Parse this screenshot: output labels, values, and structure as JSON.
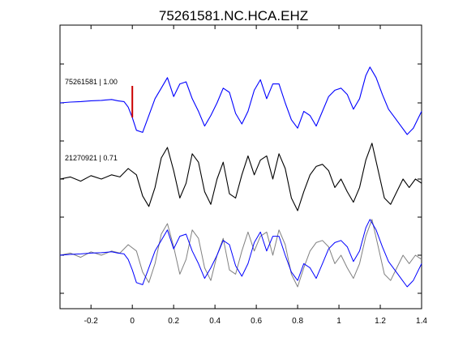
{
  "chart_data": {
    "type": "line",
    "title": "75261581.NC.HCA.EHZ",
    "xlabel": "",
    "ylabel": "",
    "xlim": [
      -0.35,
      1.4
    ],
    "x_ticks": [
      -0.2,
      0,
      0.2,
      0.4,
      0.6,
      0.8,
      1,
      1.2,
      1.4
    ],
    "x_tick_labels": [
      "-0.2",
      "0",
      "0.2",
      "0.4",
      "0.6",
      "0.8",
      "1",
      "1.2",
      "1.4"
    ],
    "grid": false,
    "pick_marker": {
      "x": 0,
      "color": "#cc0000"
    },
    "colors": {
      "primary": "#0000ff",
      "secondary": "#000000",
      "overlay_gray": "#808080"
    },
    "traces": [
      {
        "label": "75261581 | 1.00",
        "color": "#0000ff",
        "x": [
          -0.35,
          -0.3,
          -0.25,
          -0.2,
          -0.15,
          -0.1,
          -0.07,
          -0.04,
          -0.02,
          0,
          0.02,
          0.05,
          0.08,
          0.11,
          0.14,
          0.17,
          0.2,
          0.23,
          0.26,
          0.29,
          0.32,
          0.35,
          0.38,
          0.41,
          0.44,
          0.47,
          0.5,
          0.53,
          0.56,
          0.59,
          0.62,
          0.65,
          0.68,
          0.71,
          0.74,
          0.77,
          0.8,
          0.83,
          0.86,
          0.89,
          0.92,
          0.95,
          0.98,
          1.01,
          1.04,
          1.07,
          1.1,
          1.13,
          1.15,
          1.18,
          1.21,
          1.24,
          1.27,
          1.3,
          1.33,
          1.36,
          1.4
        ],
        "y": [
          0,
          0.02,
          0.03,
          0.05,
          0.06,
          0.08,
          0.05,
          0.03,
          -0.1,
          -0.35,
          -0.65,
          -0.7,
          -0.3,
          0.1,
          0.35,
          0.6,
          0.15,
          0.45,
          0.5,
          0.1,
          -0.2,
          -0.55,
          -0.3,
          0.0,
          0.35,
          0.25,
          -0.25,
          -0.5,
          -0.2,
          0.3,
          0.55,
          0.1,
          0.45,
          0.45,
          0.0,
          -0.4,
          -0.6,
          -0.2,
          -0.3,
          -0.55,
          -0.2,
          0.15,
          0.3,
          0.35,
          0.2,
          -0.15,
          0.1,
          0.65,
          0.85,
          0.6,
          0.2,
          -0.15,
          -0.35,
          -0.55,
          -0.75,
          -0.6,
          -0.2
        ]
      },
      {
        "label": "21270921 | 0.71",
        "color": "#000000",
        "x": [
          -0.35,
          -0.3,
          -0.25,
          -0.2,
          -0.15,
          -0.1,
          -0.06,
          -0.02,
          0.02,
          0.05,
          0.08,
          0.11,
          0.14,
          0.17,
          0.2,
          0.23,
          0.26,
          0.29,
          0.32,
          0.35,
          0.38,
          0.41,
          0.44,
          0.47,
          0.5,
          0.53,
          0.56,
          0.59,
          0.62,
          0.65,
          0.68,
          0.71,
          0.74,
          0.77,
          0.8,
          0.83,
          0.86,
          0.89,
          0.92,
          0.95,
          0.98,
          1.01,
          1.04,
          1.07,
          1.1,
          1.13,
          1.16,
          1.19,
          1.22,
          1.25,
          1.28,
          1.31,
          1.34,
          1.37,
          1.4
        ],
        "y": [
          0,
          0.05,
          -0.05,
          0.08,
          0.0,
          0.1,
          0.05,
          0.25,
          0.1,
          -0.4,
          -0.65,
          -0.2,
          0.5,
          0.75,
          0.2,
          -0.45,
          -0.1,
          0.6,
          0.4,
          -0.3,
          -0.6,
          0.0,
          0.4,
          -0.35,
          -0.45,
          0.1,
          0.55,
          0.1,
          0.45,
          0.55,
          0.0,
          0.6,
          0.25,
          -0.45,
          -0.75,
          -0.3,
          0.1,
          0.3,
          0.35,
          0.2,
          -0.2,
          0.0,
          -0.3,
          -0.55,
          -0.2,
          0.45,
          0.85,
          0.2,
          -0.45,
          -0.6,
          -0.3,
          0.0,
          -0.2,
          0.0,
          -0.1
        ]
      }
    ],
    "overlay": {
      "description_hidden": true,
      "series_colors": [
        "#808080",
        "#0000ff"
      ]
    }
  }
}
